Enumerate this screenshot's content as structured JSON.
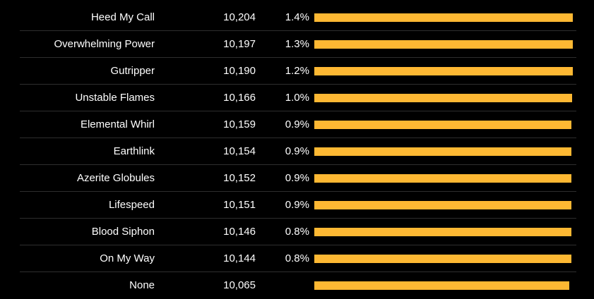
{
  "colors": {
    "background": "#000000",
    "text": "#ffffff",
    "bar": "#fdb833",
    "divider": "#2e2e2e"
  },
  "max_bar_value": 10204,
  "rows": [
    {
      "name": "Heed My Call",
      "dps": "10,204",
      "percent": "1.4%",
      "value": 10204
    },
    {
      "name": "Overwhelming Power",
      "dps": "10,197",
      "percent": "1.3%",
      "value": 10197
    },
    {
      "name": "Gutripper",
      "dps": "10,190",
      "percent": "1.2%",
      "value": 10190
    },
    {
      "name": "Unstable Flames",
      "dps": "10,166",
      "percent": "1.0%",
      "value": 10166
    },
    {
      "name": "Elemental Whirl",
      "dps": "10,159",
      "percent": "0.9%",
      "value": 10159
    },
    {
      "name": "Earthlink",
      "dps": "10,154",
      "percent": "0.9%",
      "value": 10154
    },
    {
      "name": "Azerite Globules",
      "dps": "10,152",
      "percent": "0.9%",
      "value": 10152
    },
    {
      "name": "Lifespeed",
      "dps": "10,151",
      "percent": "0.9%",
      "value": 10151
    },
    {
      "name": "Blood Siphon",
      "dps": "10,146",
      "percent": "0.8%",
      "value": 10146
    },
    {
      "name": "On My Way",
      "dps": "10,144",
      "percent": "0.8%",
      "value": 10144
    },
    {
      "name": "None",
      "dps": "10,065",
      "percent": "",
      "value": 10065
    }
  ]
}
